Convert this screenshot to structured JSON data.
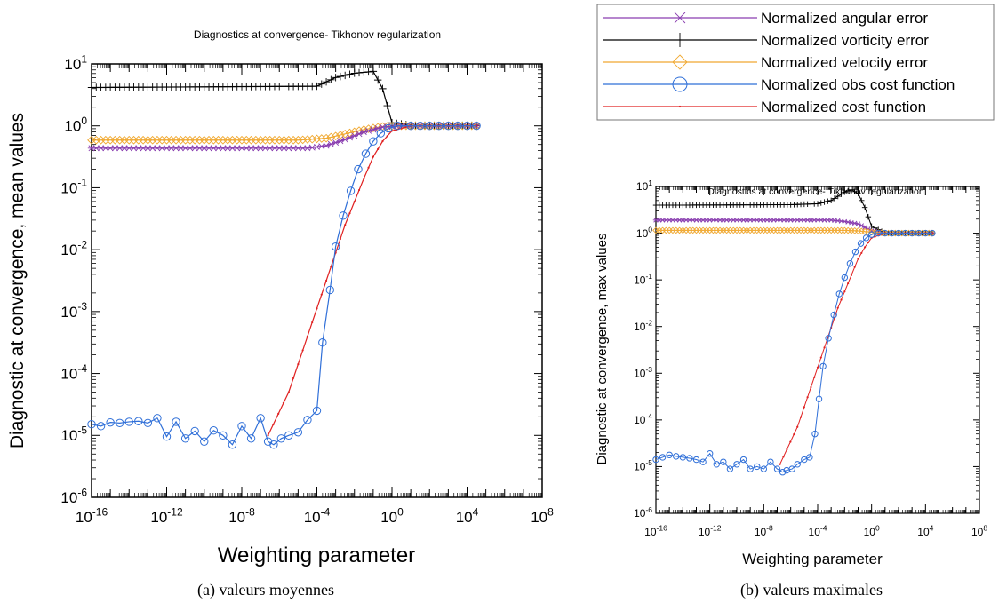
{
  "legend": {
    "entries": [
      {
        "label": "Normalized angular error",
        "color": "#8a3fb0",
        "marker": "asterisk"
      },
      {
        "label": "Normalized vorticity error",
        "color": "#000000",
        "marker": "plus"
      },
      {
        "label": "Normalized velocity error",
        "color": "#f0a830",
        "marker": "diamond"
      },
      {
        "label": "Normalized obs cost function",
        "color": "#2f6fd8",
        "marker": "circle"
      },
      {
        "label": "Normalized cost function",
        "color": "#e02020",
        "marker": "dot"
      }
    ]
  },
  "captions": {
    "a": "(a) valeurs moyennes",
    "b": "(b) valeurs maximales"
  },
  "chart_data": [
    {
      "id": "a",
      "type": "line",
      "title": "Diagnostics at convergence- Tikhonov regularization",
      "xlabel": "Weighting parameter",
      "ylabel": "Diagnostic at convergence, mean values",
      "xscale": "log",
      "yscale": "log",
      "xlim_exp": [
        -16,
        8
      ],
      "ylim_exp": [
        -6,
        1
      ],
      "x_tick_labels": [
        "10-16",
        "10-12",
        "10-8",
        "10-4",
        "100",
        "104",
        "108"
      ],
      "y_tick_labels": [
        "10-6",
        "10-5",
        "10-4",
        "10-3",
        "10-2",
        "10-1",
        "100",
        "101"
      ],
      "series": [
        {
          "name": "Normalized vorticity error",
          "color": "#000000",
          "marker": "plus",
          "log_x": [
            -16,
            -10,
            -4,
            -3,
            -2,
            -1,
            -0.5,
            0,
            1,
            4.5
          ],
          "log_y": [
            0.62,
            0.63,
            0.64,
            0.78,
            0.85,
            0.88,
            0.6,
            0.05,
            0.01,
            0.01
          ]
        },
        {
          "name": "Normalized velocity error",
          "color": "#f0a830",
          "marker": "diamond",
          "log_x": [
            -16,
            -5,
            -3.5,
            -2.5,
            -1.5,
            -0.5,
            0.5,
            4.5
          ],
          "log_y": [
            -0.23,
            -0.23,
            -0.2,
            -0.13,
            -0.06,
            -0.01,
            0,
            0
          ]
        },
        {
          "name": "Normalized angular error",
          "color": "#8a3fb0",
          "marker": "asterisk",
          "log_x": [
            -16,
            -4.5,
            -3.5,
            -2.5,
            -1.5,
            -0.5,
            0.5,
            4.5
          ],
          "log_y": [
            -0.36,
            -0.36,
            -0.32,
            -0.22,
            -0.1,
            -0.02,
            0,
            0
          ]
        },
        {
          "name": "Normalized cost function",
          "color": "#e02020",
          "marker": "dot",
          "log_x": [
            -6.6,
            -5.5,
            -4.5,
            -3.5,
            -2.5,
            -1.5,
            -1,
            -0.5,
            0,
            1,
            4.5
          ],
          "log_y": [
            -5,
            -4.3,
            -3.4,
            -2.5,
            -1.6,
            -0.85,
            -0.5,
            -0.25,
            -0.08,
            0,
            0
          ]
        },
        {
          "name": "Normalized obs cost function",
          "color": "#2f6fd8",
          "marker": "circle",
          "log_x": [
            -16,
            -15.5,
            -15,
            -14.5,
            -14,
            -13.5,
            -13,
            -12.5,
            -12,
            -11.5,
            -11,
            -10.5,
            -10,
            -9.5,
            -9,
            -8.5,
            -8,
            -7.5,
            -7,
            -6.6,
            -6.3,
            -5.9,
            -5.5,
            -5,
            -4.5,
            -4,
            -3.7,
            -3.3,
            -3,
            -2.6,
            -2.2,
            -1.8,
            -1.4,
            -1,
            -0.6,
            -0.2,
            0.3,
            1,
            4.5
          ],
          "log_y": [
            -4.82,
            -4.85,
            -4.79,
            -4.8,
            -4.78,
            -4.77,
            -4.8,
            -4.72,
            -5.02,
            -4.78,
            -5.05,
            -4.93,
            -5.1,
            -4.92,
            -5.0,
            -5.15,
            -4.85,
            -5.05,
            -4.72,
            -5.1,
            -5.15,
            -5.05,
            -5.0,
            -4.95,
            -4.75,
            -4.6,
            -3.5,
            -2.65,
            -1.95,
            -1.45,
            -1.05,
            -0.7,
            -0.45,
            -0.25,
            -0.12,
            -0.04,
            0,
            0,
            0
          ]
        }
      ]
    },
    {
      "id": "b",
      "type": "line",
      "title": "Diagnostics at convergence- Tikhonov regularization",
      "xlabel": "Weighting parameter",
      "ylabel": "Diagnostic at convergence, max values",
      "xscale": "log",
      "yscale": "log",
      "xlim_exp": [
        -16,
        8
      ],
      "ylim_exp": [
        -6,
        1
      ],
      "x_tick_labels": [
        "10-16",
        "10-12",
        "10-8",
        "10-4",
        "100",
        "104",
        "108"
      ],
      "y_tick_labels": [
        "10-6",
        "10-5",
        "10-4",
        "10-3",
        "10-2",
        "10-1",
        "100",
        "101"
      ],
      "series": [
        {
          "name": "Normalized vorticity error",
          "color": "#000000",
          "marker": "plus",
          "log_x": [
            -16,
            -6,
            -4,
            -3,
            -2,
            -1.5,
            -1,
            -0.5,
            0,
            1,
            4.5
          ],
          "log_y": [
            0.6,
            0.61,
            0.63,
            0.7,
            0.88,
            0.93,
            0.85,
            0.55,
            0.15,
            0,
            0
          ]
        },
        {
          "name": "Normalized angular error",
          "color": "#8a3fb0",
          "marker": "asterisk",
          "log_x": [
            -16,
            -4,
            -3,
            -2,
            -1,
            0,
            1,
            4.5
          ],
          "log_y": [
            0.28,
            0.28,
            0.28,
            0.25,
            0.2,
            0.05,
            0,
            0
          ]
        },
        {
          "name": "Normalized velocity error",
          "color": "#f0a830",
          "marker": "diamond",
          "log_x": [
            -16,
            -4,
            -2,
            -1,
            0,
            1,
            4.5
          ],
          "log_y": [
            0.06,
            0.06,
            0.06,
            0.05,
            0.02,
            0,
            0
          ]
        },
        {
          "name": "Normalized cost function",
          "color": "#e02020",
          "marker": "dot",
          "log_x": [
            -6.8,
            -5.5,
            -4.5,
            -3.5,
            -2.5,
            -1.5,
            -1,
            -0.5,
            0,
            1,
            4.5
          ],
          "log_y": [
            -4.95,
            -4.15,
            -3.3,
            -2.45,
            -1.6,
            -0.9,
            -0.55,
            -0.3,
            -0.1,
            0,
            0
          ]
        },
        {
          "name": "Normalized obs cost function",
          "color": "#2f6fd8",
          "marker": "circle",
          "log_x": [
            -16,
            -15.5,
            -15,
            -14.5,
            -14,
            -13.5,
            -13,
            -12.5,
            -12,
            -11.5,
            -11,
            -10.5,
            -10,
            -9.5,
            -9,
            -8.5,
            -8,
            -7.5,
            -7,
            -6.6,
            -6.3,
            -5.9,
            -5.5,
            -5,
            -4.6,
            -4.2,
            -3.9,
            -3.6,
            -3.2,
            -2.8,
            -2.4,
            -2,
            -1.6,
            -1.2,
            -0.8,
            -0.4,
            0,
            0.5,
            1,
            4.5
          ],
          "log_y": [
            -4.85,
            -4.8,
            -4.75,
            -4.78,
            -4.8,
            -4.82,
            -4.85,
            -4.9,
            -4.72,
            -4.95,
            -4.9,
            -5.05,
            -4.95,
            -4.85,
            -5.05,
            -5.0,
            -5.05,
            -4.9,
            -5.05,
            -5.12,
            -5.08,
            -5.05,
            -4.95,
            -4.85,
            -4.8,
            -4.3,
            -3.55,
            -2.85,
            -2.25,
            -1.75,
            -1.3,
            -0.95,
            -0.65,
            -0.4,
            -0.22,
            -0.1,
            -0.03,
            0,
            0,
            0
          ]
        }
      ]
    }
  ]
}
